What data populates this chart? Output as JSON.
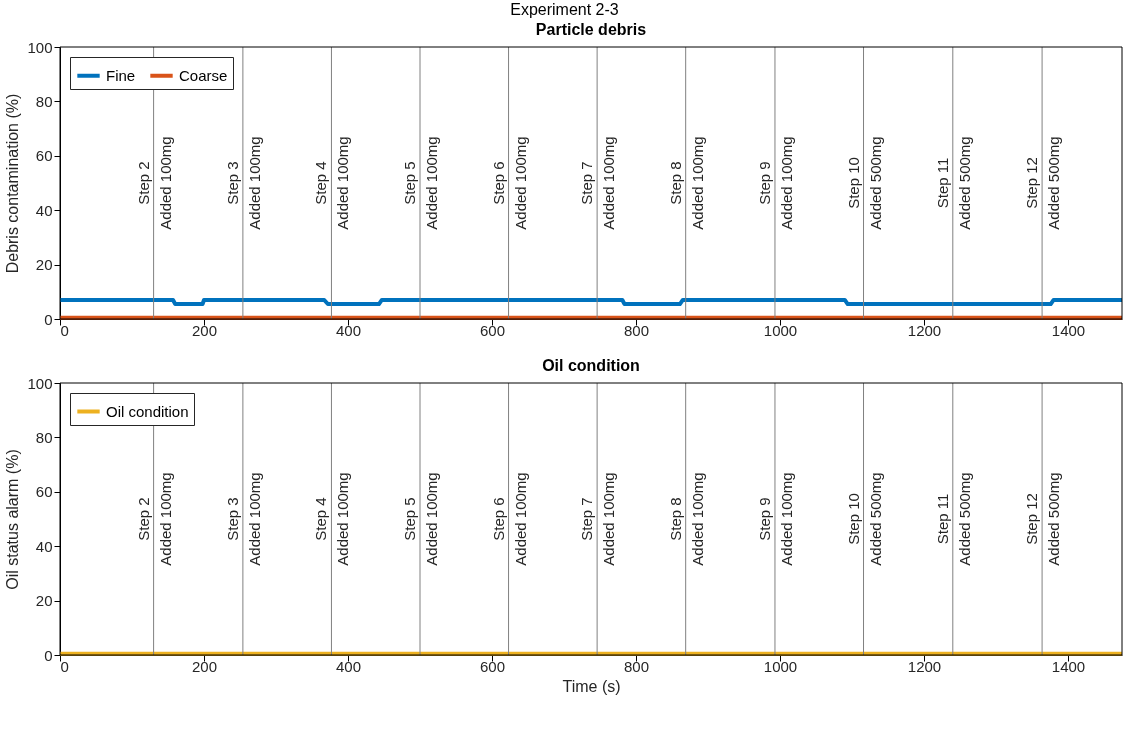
{
  "chart_data": [
    {
      "type": "line",
      "title": "Experiment 2-3",
      "subtitle": "Particle debris",
      "ylabel": "Debris contamination (%)",
      "xlim": [
        0,
        1475
      ],
      "ylim": [
        0,
        100
      ],
      "xticks": [
        0,
        200,
        400,
        600,
        800,
        1000,
        1200,
        1400
      ],
      "yticks": [
        0,
        20,
        40,
        60,
        80,
        100
      ],
      "grid": false,
      "legend": "top left",
      "marker": "none",
      "line_style": "solid",
      "series": [
        {
          "name": "Fine",
          "color": "#0072bd",
          "x": [
            0,
            157,
            160,
            198,
            200,
            367,
            372,
            443,
            447,
            781,
            784,
            861,
            865,
            1090,
            1094,
            1376,
            1380,
            1475
          ],
          "values": [
            7,
            7,
            5.5,
            5.5,
            7,
            7,
            5.5,
            5.5,
            7,
            7,
            5.5,
            5.5,
            7,
            7,
            5.5,
            5.5,
            7,
            7
          ]
        },
        {
          "name": "Coarse",
          "color": "#d95319",
          "x": [
            0,
            1475
          ],
          "values": [
            0.5,
            0.5
          ]
        }
      ],
      "ref_lines": [
        {
          "axis": "x",
          "value": 130,
          "label": "Step 2\nAdded 100mg",
          "color": "#808080"
        },
        {
          "axis": "x",
          "value": 254,
          "label": "Step 3\nAdded 100mg",
          "color": "#808080"
        },
        {
          "axis": "x",
          "value": 377,
          "label": "Step 4\nAdded 100mg",
          "color": "#808080"
        },
        {
          "axis": "x",
          "value": 500,
          "label": "Step 5\nAdded 100mg",
          "color": "#808080"
        },
        {
          "axis": "x",
          "value": 623,
          "label": "Step 6\nAdded 100mg",
          "color": "#808080"
        },
        {
          "axis": "x",
          "value": 746,
          "label": "Step 7\nAdded 100mg",
          "color": "#808080"
        },
        {
          "axis": "x",
          "value": 869,
          "label": "Step 8\nAdded 100mg",
          "color": "#808080"
        },
        {
          "axis": "x",
          "value": 993,
          "label": "Step 9\nAdded 100mg",
          "color": "#808080"
        },
        {
          "axis": "x",
          "value": 1116,
          "label": "Step 10\nAdded 500mg",
          "color": "#808080"
        },
        {
          "axis": "x",
          "value": 1240,
          "label": "Step 11\nAdded 500mg",
          "color": "#808080"
        },
        {
          "axis": "x",
          "value": 1364,
          "label": "Step 12\nAdded 500mg",
          "color": "#808080"
        }
      ]
    },
    {
      "type": "line",
      "subtitle": "Oil condition",
      "xlabel": "Time (s)",
      "ylabel": "Oil status alarm (%)",
      "xlim": [
        0,
        1475
      ],
      "ylim": [
        0,
        100
      ],
      "xticks": [
        0,
        200,
        400,
        600,
        800,
        1000,
        1200,
        1400
      ],
      "yticks": [
        0,
        20,
        40,
        60,
        80,
        100
      ],
      "grid": false,
      "legend": "top left",
      "marker": "none",
      "line_style": "solid",
      "series": [
        {
          "name": "Oil condition",
          "color": "#edb120",
          "x": [
            0,
            1475
          ],
          "values": [
            0.5,
            0.5
          ]
        }
      ],
      "ref_lines": [
        {
          "axis": "x",
          "value": 130,
          "label": "Step 2\nAdded 100mg",
          "color": "#808080"
        },
        {
          "axis": "x",
          "value": 254,
          "label": "Step 3\nAdded 100mg",
          "color": "#808080"
        },
        {
          "axis": "x",
          "value": 377,
          "label": "Step 4\nAdded 100mg",
          "color": "#808080"
        },
        {
          "axis": "x",
          "value": 500,
          "label": "Step 5\nAdded 100mg",
          "color": "#808080"
        },
        {
          "axis": "x",
          "value": 623,
          "label": "Step 6\nAdded 100mg",
          "color": "#808080"
        },
        {
          "axis": "x",
          "value": 746,
          "label": "Step 7\nAdded 100mg",
          "color": "#808080"
        },
        {
          "axis": "x",
          "value": 869,
          "label": "Step 8\nAdded 100mg",
          "color": "#808080"
        },
        {
          "axis": "x",
          "value": 993,
          "label": "Step 9\nAdded 100mg",
          "color": "#808080"
        },
        {
          "axis": "x",
          "value": 1116,
          "label": "Step 10\nAdded 500mg",
          "color": "#808080"
        },
        {
          "axis": "x",
          "value": 1240,
          "label": "Step 11\nAdded 500mg",
          "color": "#808080"
        },
        {
          "axis": "x",
          "value": 1364,
          "label": "Step 12\nAdded 500mg",
          "color": "#808080"
        }
      ]
    }
  ]
}
